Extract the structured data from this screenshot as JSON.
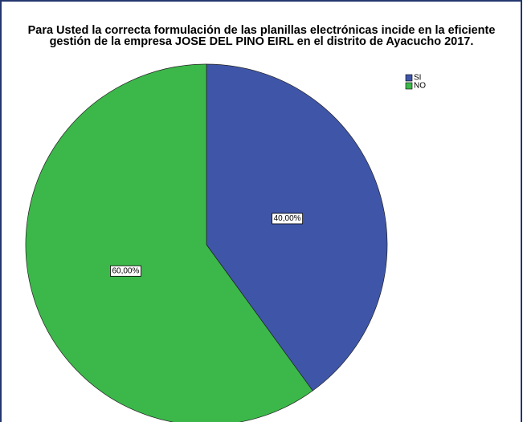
{
  "chart_data": {
    "type": "pie",
    "title": "Para Usted la correcta formulación de las planillas electrónicas incide en la eficiente gestión de la empresa JOSE DEL PINO EIRL en el distrito de Ayacucho 2017.",
    "categories": [
      "SI",
      "NO"
    ],
    "values": [
      40,
      60
    ],
    "value_labels": [
      "40,00%",
      "60,00%"
    ],
    "colors": [
      "#3f56a8",
      "#3cb84a"
    ],
    "legend": "top-right"
  }
}
